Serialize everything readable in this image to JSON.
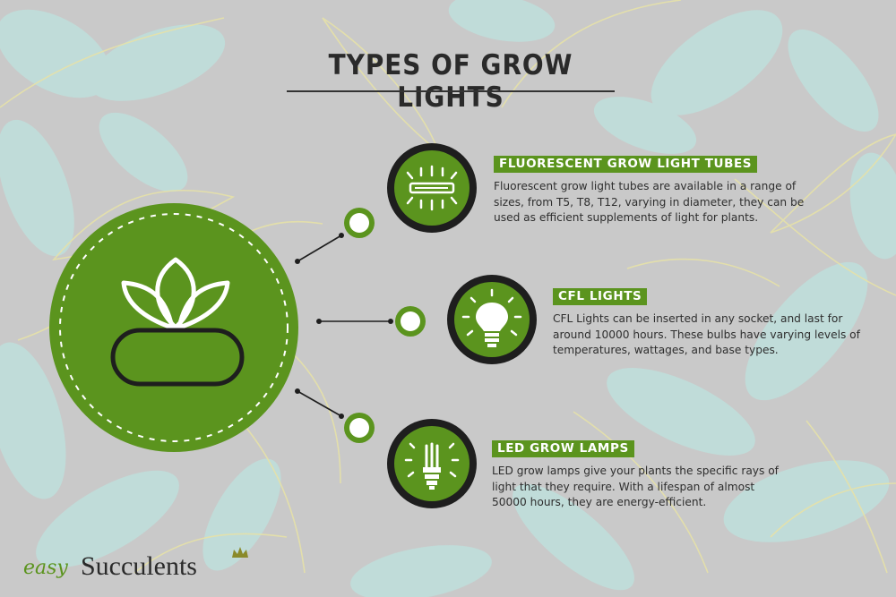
{
  "title": "TYPES OF GROW LIGHTS",
  "colors": {
    "accent_green": "#5b941e",
    "dark": "#2a2a2a",
    "background": "#c9c9c9",
    "leaf_teal": "#bfe0dc",
    "leaf_outline": "#e6e1a8"
  },
  "central_icon": "succulent-plant-pot-icon",
  "items": [
    {
      "heading": "FLUORESCENT GROW LIGHT TUBES",
      "text": "Fluorescent grow light tubes are available in a range of sizes, from T5, T8, T12, varying in diameter, they can be used as efficient supplements of light for plants.",
      "icon": "fluorescent-tube-icon"
    },
    {
      "heading": "CFL LIGHTS",
      "text": "CFL Lights can be inserted in any socket, and last for around 10000 hours. These bulbs have varying levels of temperatures, wattages, and base types.",
      "icon": "light-bulb-icon"
    },
    {
      "heading": "LED GROW LAMPS",
      "text": "LED grow lamps give your plants the specific rays of light that they require. With a lifespan of almost 50000 hours, they are energy-efficient.",
      "icon": "led-lamp-icon"
    }
  ],
  "logo": {
    "easy": "easy",
    "succulents": "Succulents"
  }
}
